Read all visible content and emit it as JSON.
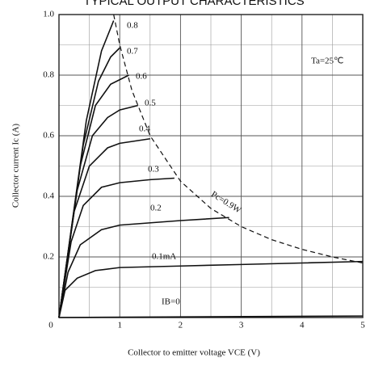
{
  "chart_data": {
    "type": "line",
    "title": "TYPICAL OUTPUT CHARACTERISTICS",
    "x_label": "Collector to emitter voltage  VCE (V)",
    "y_label": "Collector current  Ic (A)",
    "xlim": [
      0,
      5
    ],
    "ylim": [
      0,
      1
    ],
    "xticks": [
      0,
      1,
      2,
      3,
      4,
      5
    ],
    "yticks": [
      0.2,
      0.4,
      0.6,
      0.8,
      {
        "value": 1,
        "label": "1.0"
      }
    ],
    "grid": true,
    "annotations": [
      "Ta=25℃",
      "Pc=0.9W"
    ],
    "series": [
      {
        "name": "0.8",
        "color": "#111",
        "x": [
          0,
          0.45,
          0.7,
          0.9
        ],
        "values": [
          0,
          0.65,
          0.88,
          0.98
        ]
      },
      {
        "name": "0.7",
        "color": "#111",
        "x": [
          0,
          0.4,
          0.65,
          0.85,
          1.0
        ],
        "values": [
          0,
          0.57,
          0.78,
          0.86,
          0.89
        ]
      },
      {
        "name": "0.6",
        "color": "#111",
        "x": [
          0,
          0.35,
          0.6,
          0.85,
          1.15
        ],
        "values": [
          0,
          0.5,
          0.7,
          0.77,
          0.8
        ]
      },
      {
        "name": "0.5",
        "color": "#111",
        "x": [
          0,
          0.3,
          0.55,
          0.8,
          1.0,
          1.3
        ],
        "values": [
          0,
          0.42,
          0.6,
          0.66,
          0.685,
          0.7
        ]
      },
      {
        "name": "0.4",
        "color": "#111",
        "x": [
          0,
          0.25,
          0.5,
          0.8,
          1.0,
          1.5
        ],
        "values": [
          0,
          0.35,
          0.5,
          0.56,
          0.575,
          0.59
        ]
      },
      {
        "name": "0.3",
        "color": "#111",
        "x": [
          0,
          0.2,
          0.4,
          0.7,
          1.0,
          1.5,
          1.9
        ],
        "values": [
          0,
          0.25,
          0.37,
          0.43,
          0.445,
          0.455,
          0.46
        ]
      },
      {
        "name": "0.2",
        "color": "#111",
        "x": [
          0,
          0.15,
          0.35,
          0.7,
          1.0,
          2.0,
          2.8
        ],
        "values": [
          0,
          0.15,
          0.24,
          0.29,
          0.305,
          0.32,
          0.33
        ]
      },
      {
        "name": "0.1mA",
        "color": "#111",
        "x": [
          0,
          0.1,
          0.3,
          0.6,
          1.0,
          2.0,
          3.0,
          4.0,
          5.0
        ],
        "values": [
          0,
          0.09,
          0.13,
          0.155,
          0.165,
          0.17,
          0.175,
          0.18,
          0.185
        ]
      },
      {
        "name": "IB=0",
        "color": "#111",
        "x": [
          0,
          5
        ],
        "values": [
          0,
          0.005
        ]
      },
      {
        "name": "Pc=0.9W",
        "color": "#111",
        "dashed": true,
        "x": [
          0.9,
          1.0,
          1.2,
          1.5,
          2.0,
          2.5,
          3.0,
          3.5,
          4.0,
          4.5,
          5.0
        ],
        "values": [
          1.0,
          0.9,
          0.75,
          0.6,
          0.45,
          0.36,
          0.3,
          0.257,
          0.225,
          0.2,
          0.18
        ]
      }
    ]
  }
}
